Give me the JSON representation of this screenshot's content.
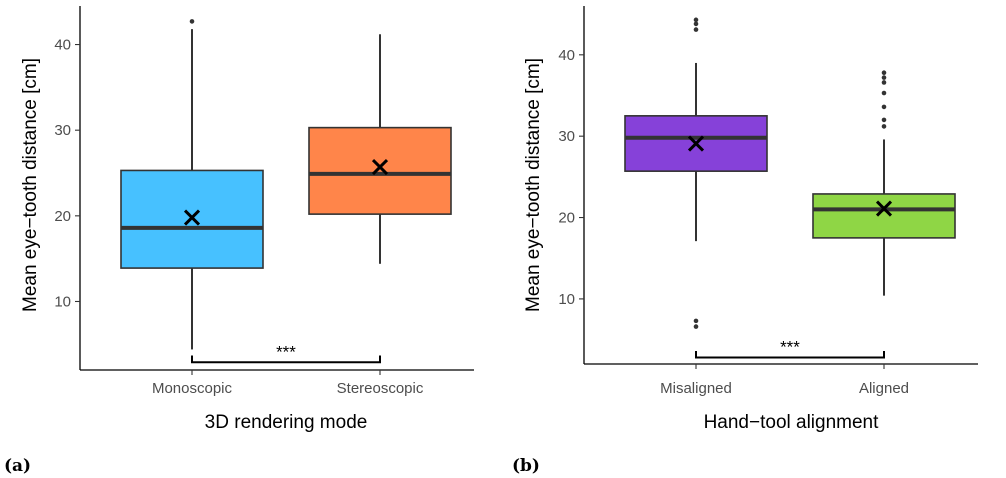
{
  "chart_data": [
    {
      "type": "box",
      "panel_label": "(a)",
      "xlabel": "3D rendering mode",
      "ylabel": "Mean eye−tooth distance [cm]",
      "ylim": [
        2.0,
        44.5
      ],
      "yticks": [
        10,
        20,
        30,
        40
      ],
      "categories": [
        "Monoscopic",
        "Stereoscopic"
      ],
      "boxes": [
        {
          "category": "Monoscopic",
          "color": "#47C1FF",
          "whisker_low": 4.4,
          "q1": 13.9,
          "median": 18.6,
          "q3": 25.3,
          "whisker_high": 41.8,
          "mean": 19.8,
          "outliers": [
            42.7
          ]
        },
        {
          "category": "Stereoscopic",
          "color": "#FF854A",
          "whisker_low": 14.4,
          "q1": 20.2,
          "median": 24.9,
          "q3": 30.3,
          "whisker_high": 41.2,
          "mean": 25.7,
          "outliers": []
        }
      ],
      "significance": {
        "label": "***",
        "between": [
          "Monoscopic",
          "Stereoscopic"
        ],
        "y": 2.9,
        "tick_top": 3.7
      },
      "grid": false,
      "legend": "none"
    },
    {
      "type": "box",
      "panel_label": "(b)",
      "xlabel": "Hand−tool alignment",
      "ylabel": "Mean eye−tooth distance [cm]",
      "ylim": [
        2.0,
        46.0
      ],
      "yticks": [
        10,
        20,
        30,
        40
      ],
      "categories": [
        "Misaligned",
        "Aligned"
      ],
      "boxes": [
        {
          "category": "Misaligned",
          "color": "#8641D9",
          "whisker_low": 17.1,
          "q1": 25.7,
          "median": 29.8,
          "q3": 32.5,
          "whisker_high": 39.0,
          "mean": 29.1,
          "outliers": [
            6.6,
            7.3,
            43.1,
            43.8,
            44.3
          ]
        },
        {
          "category": "Aligned",
          "color": "#8FD645",
          "whisker_low": 10.4,
          "q1": 17.5,
          "median": 21.0,
          "q3": 22.9,
          "whisker_high": 29.6,
          "mean": 21.1,
          "outliers": [
            31.2,
            32.0,
            33.6,
            35.3,
            36.6,
            37.2,
            37.8
          ]
        }
      ],
      "significance": {
        "label": "***",
        "between": [
          "Misaligned",
          "Aligned"
        ],
        "y": 2.8,
        "tick_top": 3.6
      },
      "grid": false,
      "legend": "none"
    }
  ]
}
